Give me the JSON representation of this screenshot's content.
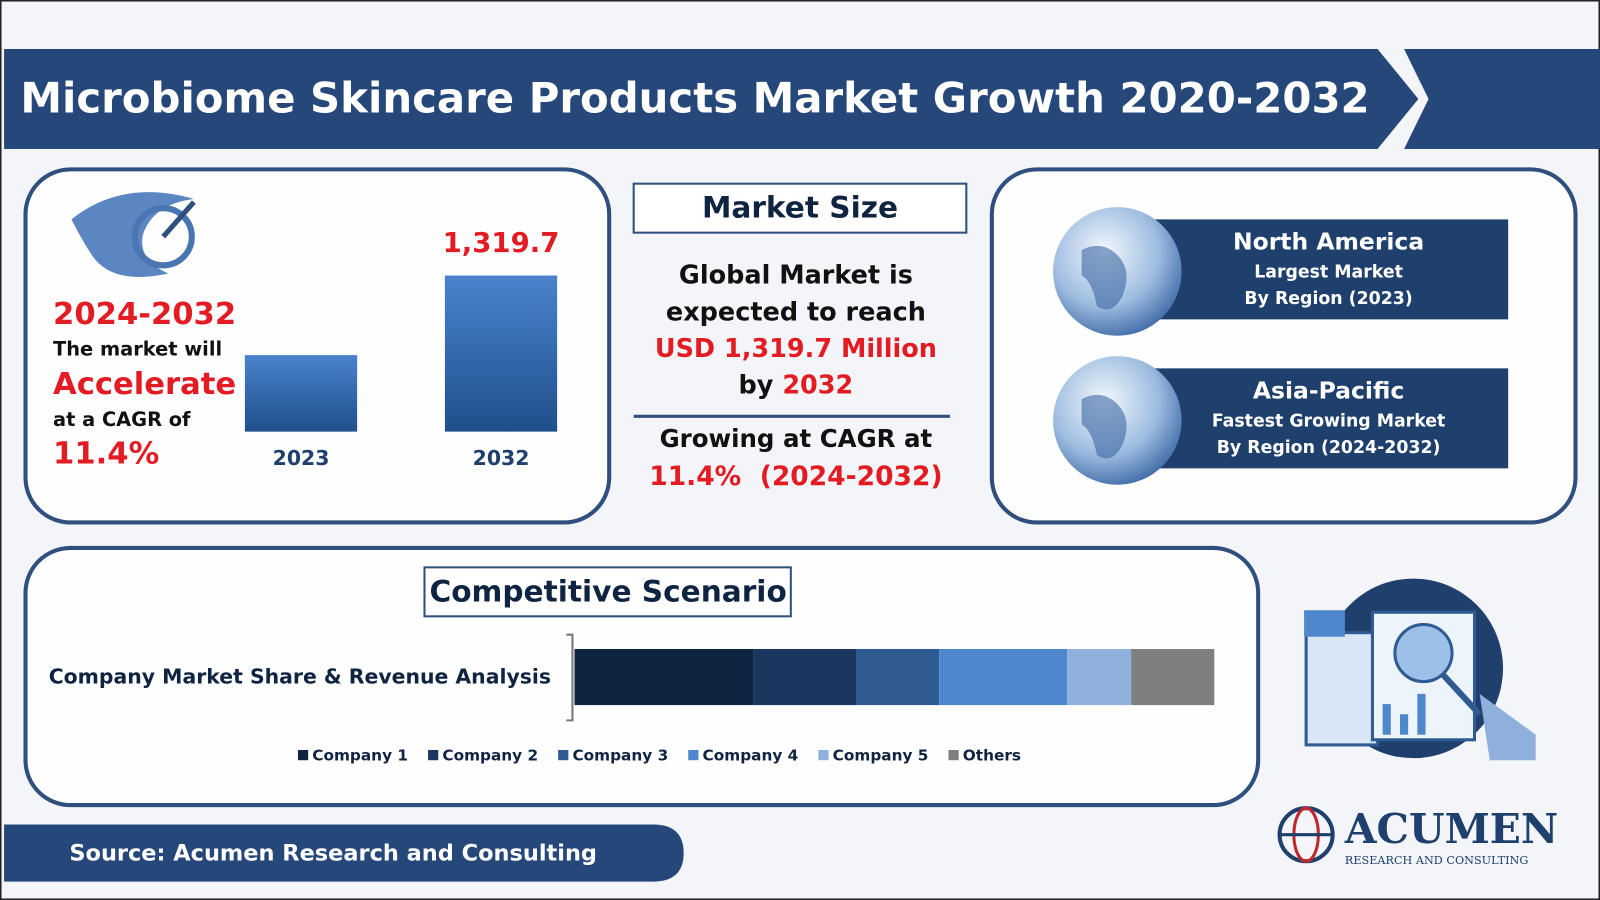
{
  "title": "Microbiome Skincare Products Market Growth 2020-2032",
  "highlight": {
    "period": "2024-2032",
    "line1": "The market will",
    "verb": "Accelerate",
    "line2": "at a CAGR of",
    "cagr": "11.4%"
  },
  "market_size": {
    "heading": "Market Size",
    "line1": "Global Market is",
    "line2": "expected to reach",
    "amount": "USD 1,319.7 Million",
    "by": "by",
    "year": "2032",
    "growth": "Growing at CAGR at",
    "growth_value": "11.4%  (2024-2032)"
  },
  "regions": [
    {
      "name": "North America",
      "line1": "Largest Market",
      "line2": "By Region (2023)"
    },
    {
      "name": "Asia-Pacific",
      "line1": "Fastest Growing Market",
      "line2": "By Region (2024-2032)"
    }
  ],
  "competitive": {
    "heading": "Competitive Scenario"
  },
  "source": "Source: Acumen Research and Consulting",
  "logo": {
    "name": "ACUMEN",
    "tagline": "RESEARCH AND CONSULTING"
  },
  "chart_data": [
    {
      "type": "bar",
      "categories": [
        "2023",
        "2032"
      ],
      "values": [
        647,
        1319.7
      ],
      "value_labels": [
        null,
        "1,319.7"
      ],
      "color": "#3a6fb5"
    },
    {
      "type": "stacked_bar",
      "categories": [
        "Company Market Share & Revenue Analysis"
      ],
      "series": [
        {
          "name": "Company 1",
          "color": "#0f2440",
          "values": [
            28
          ]
        },
        {
          "name": "Company 2",
          "color": "#1b365f",
          "values": [
            16
          ]
        },
        {
          "name": "Company 3",
          "color": "#2f5a92",
          "values": [
            13
          ]
        },
        {
          "name": "Company 4",
          "color": "#4f87cc",
          "values": [
            20
          ]
        },
        {
          "name": "Company 5",
          "color": "#8fb0dc",
          "values": [
            10
          ]
        },
        {
          "name": "Others",
          "color": "#7f7f7f",
          "values": [
            13
          ]
        }
      ]
    }
  ]
}
